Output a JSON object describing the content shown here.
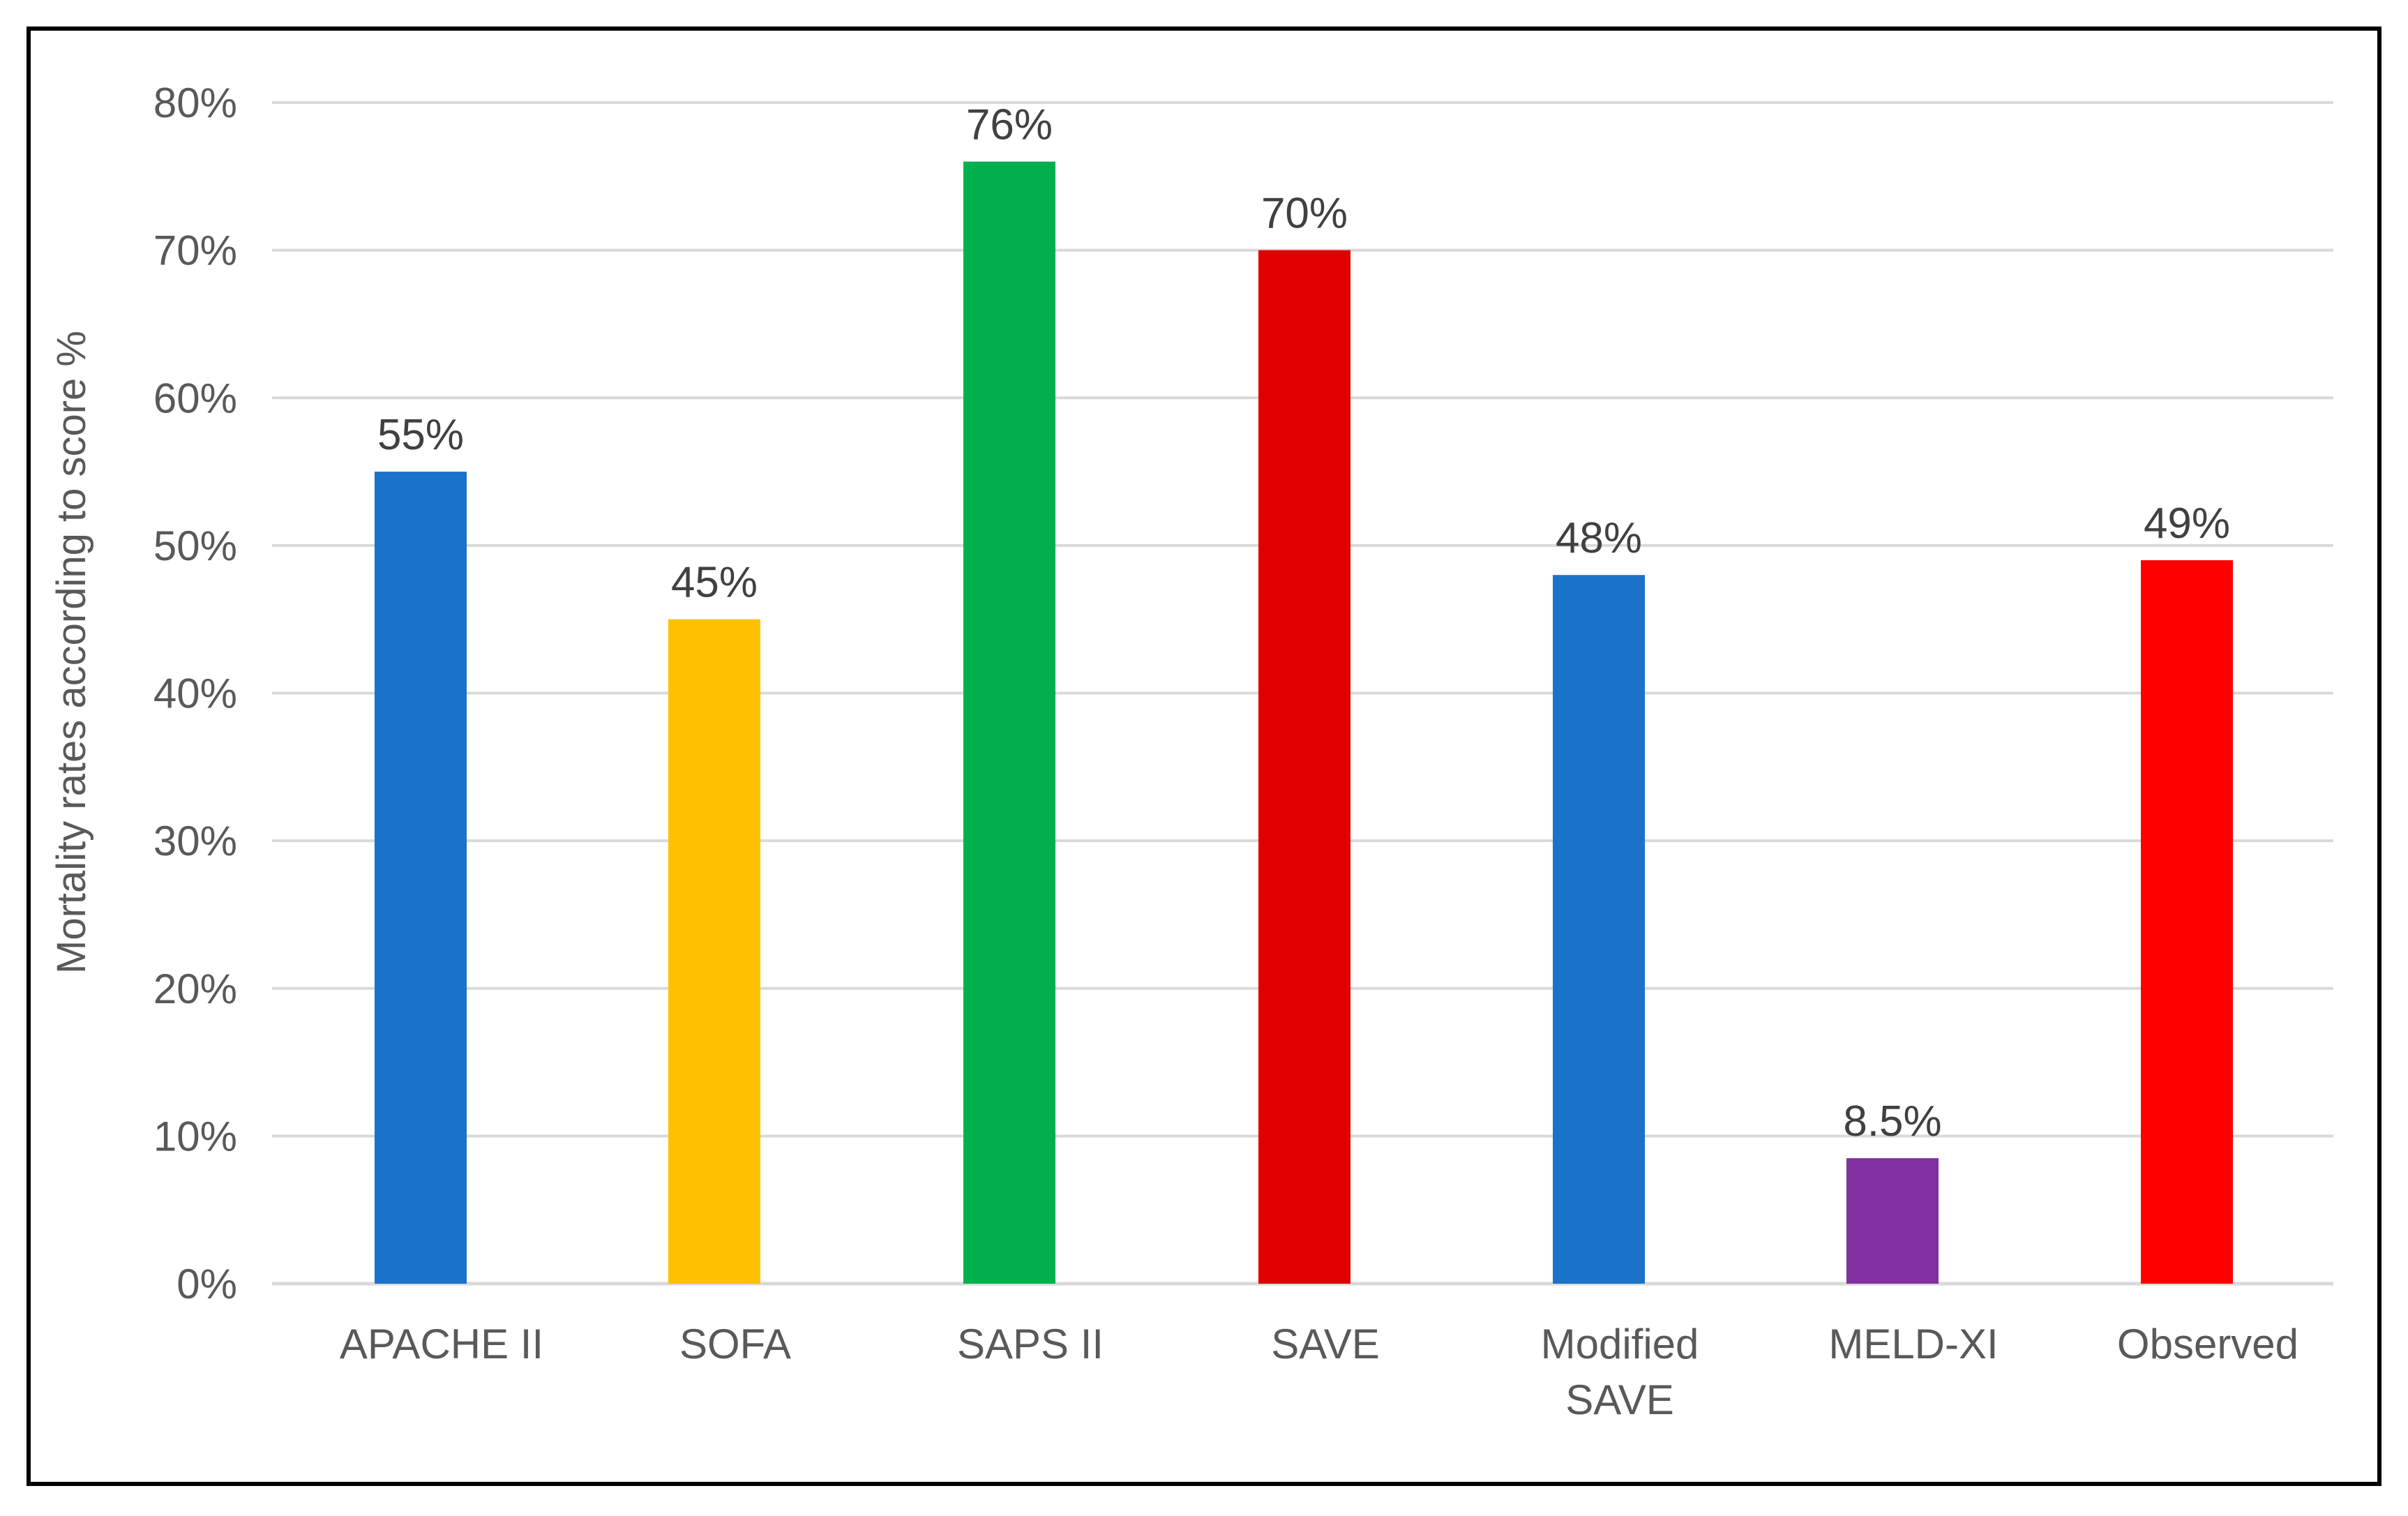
{
  "chart_data": {
    "type": "bar",
    "title": "",
    "xlabel": "",
    "ylabel": "Mortality rates according to score %",
    "ylim": [
      0,
      80
    ],
    "yticks": [
      0,
      10,
      20,
      30,
      40,
      50,
      60,
      70,
      80
    ],
    "ytick_labels": [
      "0%",
      "10%",
      "20%",
      "30%",
      "40%",
      "50%",
      "60%",
      "70%",
      "80%"
    ],
    "grid": true,
    "legend": "none",
    "categories": [
      [
        "APACHE II"
      ],
      [
        "SOFA"
      ],
      [
        "SAPS II"
      ],
      [
        "SAVE"
      ],
      [
        "Modified",
        "SAVE"
      ],
      [
        "MELD-XI"
      ],
      [
        "Observed"
      ]
    ],
    "values": [
      55,
      45,
      76,
      70,
      48,
      8.5,
      49
    ],
    "value_labels": [
      "55%",
      "45%",
      "76%",
      "70%",
      "48%",
      "8.5%",
      "49%"
    ],
    "colors": [
      "#1a73c9",
      "#ffc000",
      "#00b04f",
      "#e00000",
      "#1a73c9",
      "#8030a0",
      "#ff0000"
    ],
    "gridline_color": "#d9d9d9",
    "axis_color": "#d9d9d9"
  }
}
